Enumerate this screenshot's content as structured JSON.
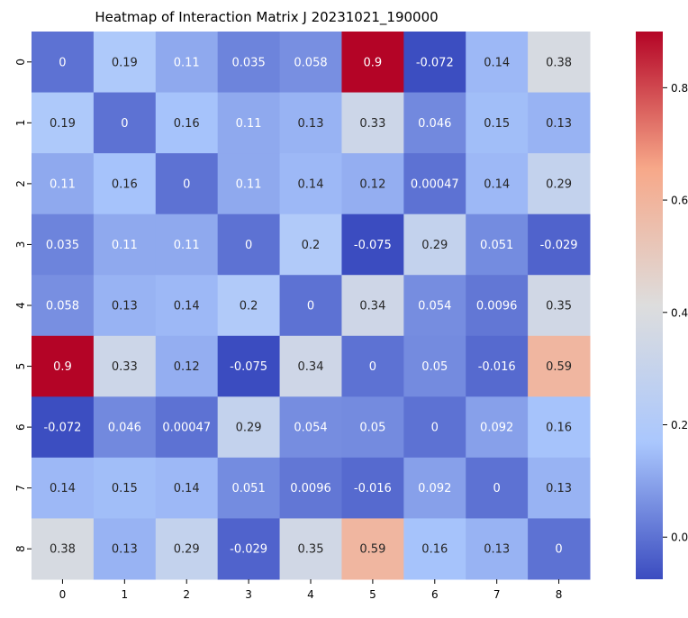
{
  "chart_data": {
    "type": "heatmap",
    "title": "Heatmap of Interaction Matrix J 20231021_190000",
    "xlabel": "",
    "ylabel": "",
    "x_labels": [
      "0",
      "1",
      "2",
      "3",
      "4",
      "5",
      "6",
      "7",
      "8"
    ],
    "y_labels": [
      "0",
      "1",
      "2",
      "3",
      "4",
      "5",
      "6",
      "7",
      "8"
    ],
    "annotations": [
      [
        "0",
        "0.19",
        "0.11",
        "0.035",
        "0.058",
        "0.9",
        "-0.072",
        "0.14",
        "0.38"
      ],
      [
        "0.19",
        "0",
        "0.16",
        "0.11",
        "0.13",
        "0.33",
        "0.046",
        "0.15",
        "0.13"
      ],
      [
        "0.11",
        "0.16",
        "0",
        "0.11",
        "0.14",
        "0.12",
        "0.00047",
        "0.14",
        "0.29"
      ],
      [
        "0.035",
        "0.11",
        "0.11",
        "0",
        "0.2",
        "-0.075",
        "0.29",
        "0.051",
        "-0.029"
      ],
      [
        "0.058",
        "0.13",
        "0.14",
        "0.2",
        "0",
        "0.34",
        "0.054",
        "0.0096",
        "0.35"
      ],
      [
        "0.9",
        "0.33",
        "0.12",
        "-0.075",
        "0.34",
        "0",
        "0.05",
        "-0.016",
        "0.59"
      ],
      [
        "-0.072",
        "0.046",
        "0.00047",
        "0.29",
        "0.054",
        "0.05",
        "0",
        "0.092",
        "0.16"
      ],
      [
        "0.14",
        "0.15",
        "0.14",
        "0.051",
        "0.0096",
        "-0.016",
        "0.092",
        "0",
        "0.13"
      ],
      [
        "0.38",
        "0.13",
        "0.29",
        "-0.029",
        "0.35",
        "0.59",
        "0.16",
        "0.13",
        "0"
      ]
    ],
    "values": [
      [
        0,
        0.19,
        0.11,
        0.035,
        0.058,
        0.9,
        -0.072,
        0.14,
        0.38
      ],
      [
        0.19,
        0,
        0.16,
        0.11,
        0.13,
        0.33,
        0.046,
        0.15,
        0.13
      ],
      [
        0.11,
        0.16,
        0,
        0.11,
        0.14,
        0.12,
        0.00047,
        0.14,
        0.29
      ],
      [
        0.035,
        0.11,
        0.11,
        0,
        0.2,
        -0.075,
        0.29,
        0.051,
        -0.029
      ],
      [
        0.058,
        0.13,
        0.14,
        0.2,
        0,
        0.34,
        0.054,
        0.0096,
        0.35
      ],
      [
        0.9,
        0.33,
        0.12,
        -0.075,
        0.34,
        0,
        0.05,
        -0.016,
        0.59
      ],
      [
        -0.072,
        0.046,
        0.00047,
        0.29,
        0.054,
        0.05,
        0,
        0.092,
        0.16
      ],
      [
        0.14,
        0.15,
        0.14,
        0.051,
        0.0096,
        -0.016,
        0.092,
        0,
        0.13
      ],
      [
        0.38,
        0.13,
        0.29,
        -0.029,
        0.35,
        0.59,
        0.16,
        0.13,
        0
      ]
    ],
    "colormap": "coolwarm",
    "colormap_stops": [
      "#3b4cc0",
      "#aac7fd",
      "#dddddd",
      "#f7a889",
      "#b40426"
    ],
    "vmin": -0.075,
    "vmax": 0.9,
    "colorbar": {
      "ticks": [
        0.0,
        0.2,
        0.4,
        0.6,
        0.8
      ],
      "tick_labels": [
        "0.0",
        "0.2",
        "0.4",
        "0.6",
        "0.8"
      ],
      "placement": "right"
    },
    "grid": false,
    "legend": "none",
    "annotation_light_color": "#ffffff",
    "annotation_dark_color": "#262626"
  }
}
